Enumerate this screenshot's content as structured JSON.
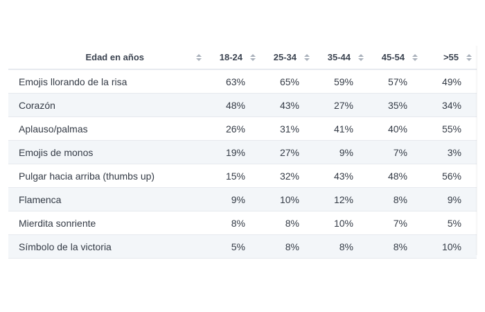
{
  "chart_data": {
    "type": "table",
    "header": {
      "label": "Edad en años",
      "columns": [
        "18-24",
        "25-34",
        "35-44",
        "45-54",
        ">55"
      ]
    },
    "rows": [
      {
        "label": "Emojis llorando de la risa",
        "values": [
          "63%",
          "65%",
          "59%",
          "57%",
          "49%"
        ]
      },
      {
        "label": "Corazón",
        "values": [
          "48%",
          "43%",
          "27%",
          "35%",
          "34%"
        ]
      },
      {
        "label": "Aplauso/palmas",
        "values": [
          "26%",
          "31%",
          "41%",
          "40%",
          "55%"
        ]
      },
      {
        "label": "Emojis de monos",
        "values": [
          "19%",
          "27%",
          "9%",
          "7%",
          "3%"
        ]
      },
      {
        "label": "Pulgar hacia arriba (thumbs up)",
        "values": [
          "15%",
          "32%",
          "43%",
          "48%",
          "56%"
        ]
      },
      {
        "label": "Flamenca",
        "values": [
          "9%",
          "10%",
          "12%",
          "8%",
          "9%"
        ]
      },
      {
        "label": "Mierdita sonriente",
        "values": [
          "8%",
          "8%",
          "10%",
          "7%",
          "5%"
        ]
      },
      {
        "label": "Símbolo de la victoria",
        "values": [
          "5%",
          "8%",
          "8%",
          "8%",
          "10%"
        ]
      }
    ]
  },
  "colors": {
    "stripe": "#f3f6f9",
    "border": "#e6e9ee",
    "text": "#333a45",
    "sort_icon": "#aab1bb"
  },
  "icons": {
    "sort": "sort-arrows-icon"
  }
}
